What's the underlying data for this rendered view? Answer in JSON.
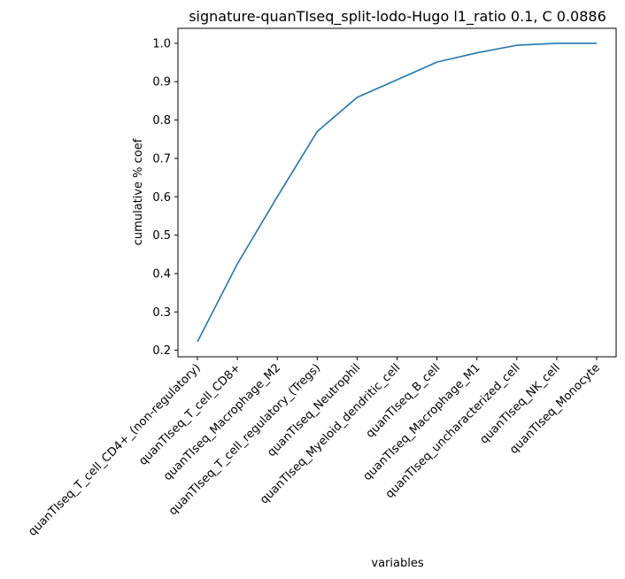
{
  "chart_data": {
    "type": "line",
    "title": "signature-quanTIseq_split-lodo-Hugo l1_ratio 0.1, C 0.0886",
    "xlabel": "variables",
    "ylabel": "cumulative % coef",
    "categories": [
      "quanTIseq_T_cell_CD4+_(non-regulatory)",
      "quanTIseq_T_cell_CD8+",
      "quanTIseq_Macrophage_M2",
      "quanTIseq_T_cell_regulatory_(Tregs)",
      "quanTIseq_Neutrophil",
      "quanTIseq_Myeloid_dendritic_cell",
      "quanTIseq_B_cell",
      "quanTIseq_Macrophage_M1",
      "quanTIseq_uncharacterized_cell",
      "quanTIseq_NK_cell",
      "quanTIseq_Monocyte"
    ],
    "series": [
      {
        "values": [
          0.222,
          0.425,
          0.6,
          0.77,
          0.859,
          0.905,
          0.951,
          0.975,
          0.995,
          1.0,
          1.0
        ]
      }
    ],
    "yticks": [
      "0.2",
      "0.3",
      "0.4",
      "0.5",
      "0.6",
      "0.7",
      "0.8",
      "0.9",
      "1.0"
    ],
    "ylim": [
      0.183,
      1.039
    ],
    "line_color": "#1f77b4",
    "grid": false,
    "legend": false
  }
}
